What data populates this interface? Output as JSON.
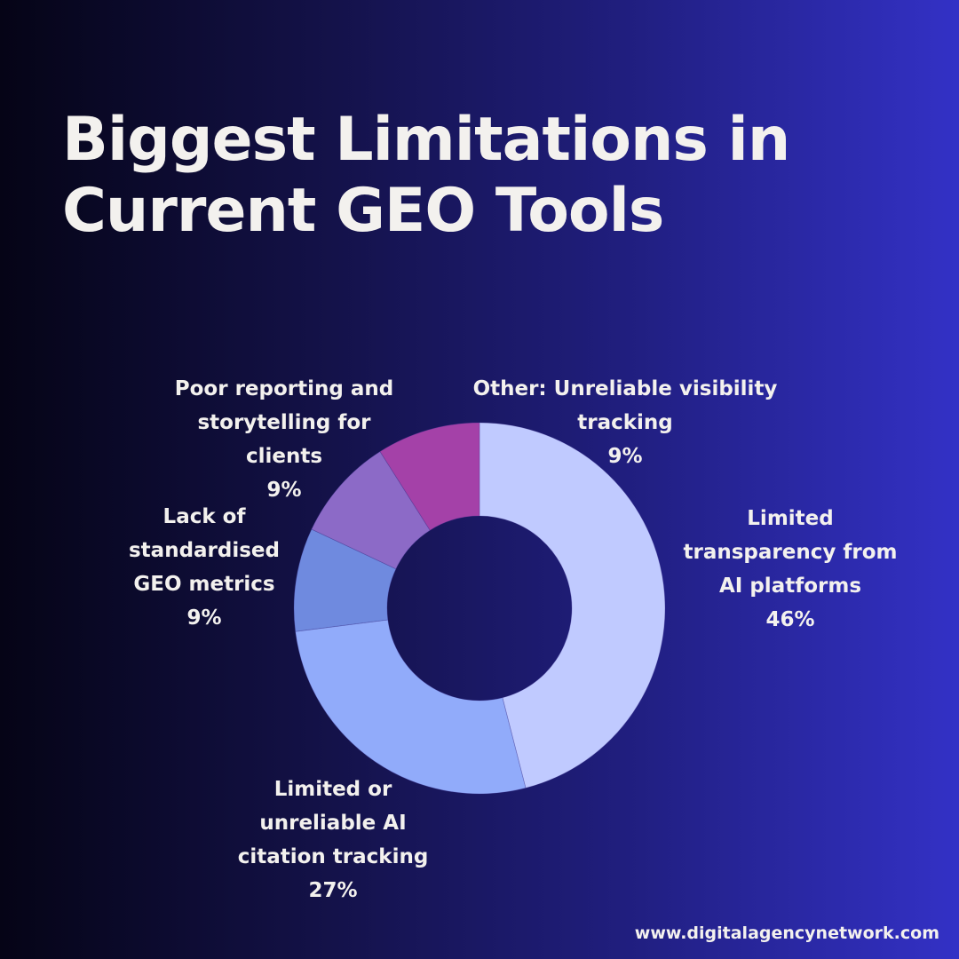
{
  "title": {
    "line1": "Biggest Limitations in",
    "line2": "Current GEO Tools"
  },
  "chart_data": {
    "type": "pie",
    "variant": "donut",
    "title": "Biggest Limitations in Current GEO Tools",
    "categories": [
      "Limited transparency from AI platforms",
      "Limited or unreliable AI citation tracking",
      "Lack of standardised GEO metrics",
      "Poor reporting and storytelling for clients",
      "Other: Unreliable visibility tracking"
    ],
    "values": [
      46,
      27,
      9,
      9,
      9
    ],
    "colors": [
      "#c0caff",
      "#91abfa",
      "#6f8adf",
      "#8c6ac7",
      "#a441a8"
    ],
    "unit": "%",
    "start_angle": "12 o'clock",
    "direction": "clockwise",
    "legend": "none (direct labels)"
  },
  "labels": [
    {
      "lines": [
        "Limited",
        "transparency from",
        "AI platforms"
      ],
      "value": "46%"
    },
    {
      "lines": [
        "Limited or",
        "unreliable AI",
        "citation tracking"
      ],
      "value": "27%"
    },
    {
      "lines": [
        "Lack of",
        "standardised",
        "GEO metrics"
      ],
      "value": "9%"
    },
    {
      "lines": [
        "Poor reporting and",
        "storytelling for",
        "clients"
      ],
      "value": "9%"
    },
    {
      "lines": [
        "Other: Unreliable visibility",
        "tracking"
      ],
      "value": "9%"
    }
  ],
  "footer": {
    "url": "www.digitalagencynetwork.com"
  },
  "colors": {
    "text": "#f3f1ee",
    "hole": "#1b1960"
  }
}
